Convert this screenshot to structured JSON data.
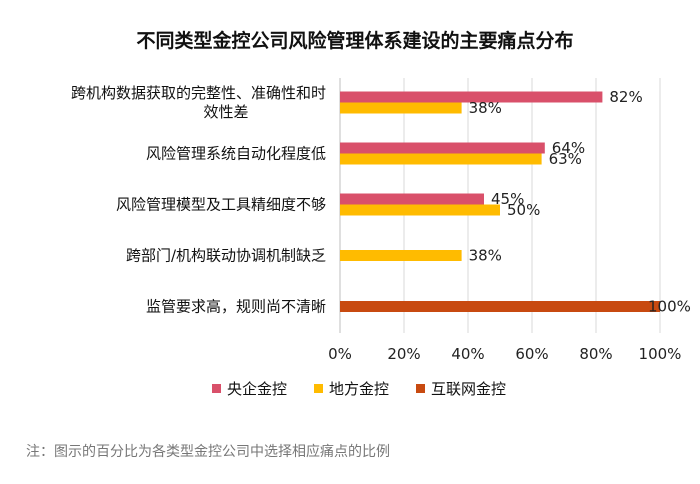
{
  "chart_data": {
    "type": "bar",
    "orientation": "horizontal",
    "title": "不同类型金控公司风险管理体系建设的主要痛点分布",
    "categories": [
      [
        "跨机构数据获取的完整性、准确性和时",
        "效性差"
      ],
      [
        "风险管理系统自动化程度低"
      ],
      [
        "风险管理模型及工具精细度不够"
      ],
      [
        "跨部门/机构联动协调机制缺乏"
      ],
      [
        "监管要求高，规则尚不清晰"
      ]
    ],
    "series": [
      {
        "name": "央企金控",
        "color": "#d9506a",
        "values": [
          82,
          64,
          45,
          null,
          null
        ]
      },
      {
        "name": "地方金控",
        "color": "#ffbb00",
        "values": [
          38,
          63,
          50,
          38,
          null
        ]
      },
      {
        "name": "互联网金控",
        "color": "#c84a10",
        "values": [
          null,
          null,
          null,
          null,
          100
        ]
      }
    ],
    "xlim": [
      0,
      100
    ],
    "xticks": [
      0,
      20,
      40,
      60,
      80,
      100
    ],
    "tick_suffix": "%",
    "value_suffix": "%",
    "grid": "vertical",
    "legend_position": "bottom",
    "note": "注：图示的百分比为各类型金控公司中选择相应痛点的比例"
  }
}
